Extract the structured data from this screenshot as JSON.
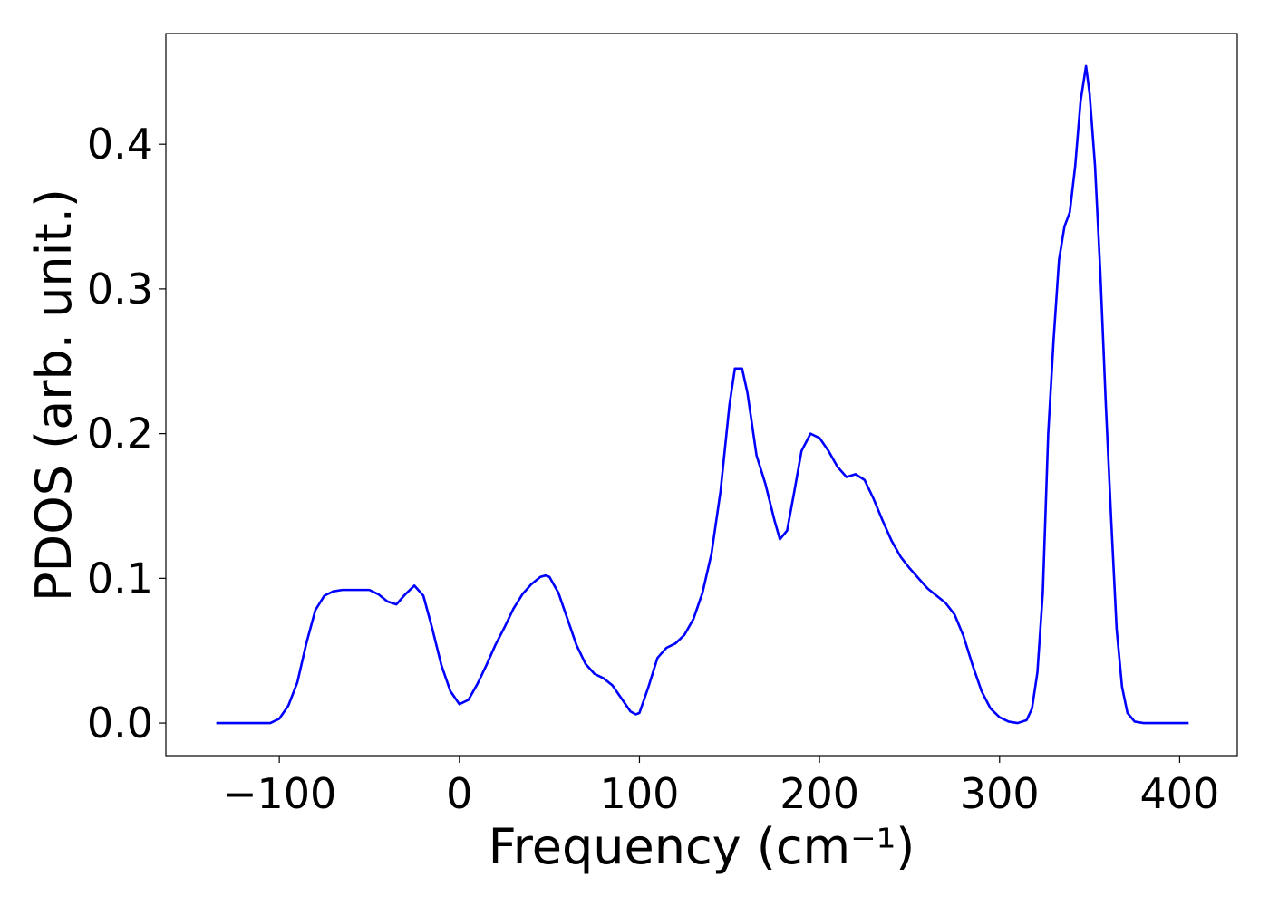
{
  "chart_data": {
    "type": "line",
    "xlabel": "Frequency (cm⁻¹)",
    "ylabel": "PDOS (arb. unit.)",
    "x": [
      -135,
      -130,
      -125,
      -120,
      -115,
      -110,
      -105,
      -100,
      -95,
      -90,
      -85,
      -80,
      -75,
      -70,
      -65,
      -60,
      -55,
      -50,
      -45,
      -40,
      -35,
      -30,
      -25,
      -20,
      -15,
      -10,
      -5,
      0,
      5,
      10,
      15,
      20,
      25,
      30,
      35,
      40,
      45,
      48,
      50,
      55,
      60,
      65,
      70,
      75,
      80,
      85,
      90,
      95,
      98,
      100,
      105,
      110,
      115,
      120,
      125,
      130,
      135,
      140,
      145,
      150,
      153,
      157,
      160,
      165,
      170,
      175,
      178,
      182,
      186,
      190,
      195,
      200,
      205,
      210,
      215,
      220,
      225,
      230,
      235,
      240,
      245,
      250,
      255,
      260,
      265,
      270,
      275,
      280,
      285,
      290,
      295,
      300,
      305,
      310,
      315,
      318,
      321,
      324,
      327,
      330,
      333,
      336,
      339,
      342,
      345,
      348,
      350,
      353,
      356,
      359,
      362,
      365,
      368,
      371,
      375,
      380,
      390,
      405
    ],
    "series": [
      {
        "name": "PDOS",
        "color": "#0000ff",
        "values": [
          0,
          0,
          0,
          0,
          0,
          0,
          0,
          0.003,
          0.012,
          0.028,
          0.055,
          0.078,
          0.088,
          0.091,
          0.092,
          0.092,
          0.092,
          0.092,
          0.089,
          0.084,
          0.082,
          0.089,
          0.095,
          0.088,
          0.065,
          0.04,
          0.022,
          0.013,
          0.016,
          0.027,
          0.04,
          0.054,
          0.066,
          0.079,
          0.089,
          0.096,
          0.101,
          0.102,
          0.101,
          0.09,
          0.072,
          0.054,
          0.041,
          0.034,
          0.031,
          0.026,
          0.017,
          0.008,
          0.006,
          0.007,
          0.025,
          0.045,
          0.052,
          0.055,
          0.061,
          0.072,
          0.09,
          0.117,
          0.16,
          0.22,
          0.245,
          0.245,
          0.228,
          0.185,
          0.165,
          0.14,
          0.127,
          0.133,
          0.16,
          0.188,
          0.2,
          0.197,
          0.188,
          0.177,
          0.17,
          0.172,
          0.168,
          0.155,
          0.14,
          0.126,
          0.115,
          0.107,
          0.1,
          0.093,
          0.088,
          0.083,
          0.075,
          0.06,
          0.04,
          0.022,
          0.01,
          0.004,
          0.001,
          0,
          0.002,
          0.01,
          0.035,
          0.09,
          0.2,
          0.265,
          0.32,
          0.343,
          0.353,
          0.385,
          0.43,
          0.454,
          0.435,
          0.385,
          0.31,
          0.22,
          0.14,
          0.065,
          0.025,
          0.007,
          0.001,
          0,
          0,
          0
        ]
      }
    ],
    "xlim": [
      -163,
      432
    ],
    "ylim": [
      -0.0225,
      0.4765
    ],
    "xticks": [
      {
        "value": -100,
        "label": "−100"
      },
      0,
      100,
      200,
      300,
      400
    ],
    "yticks": [
      {
        "value": 0,
        "label": "0.0"
      },
      0.1,
      0.2,
      0.3,
      0.4
    ],
    "grid": false
  }
}
